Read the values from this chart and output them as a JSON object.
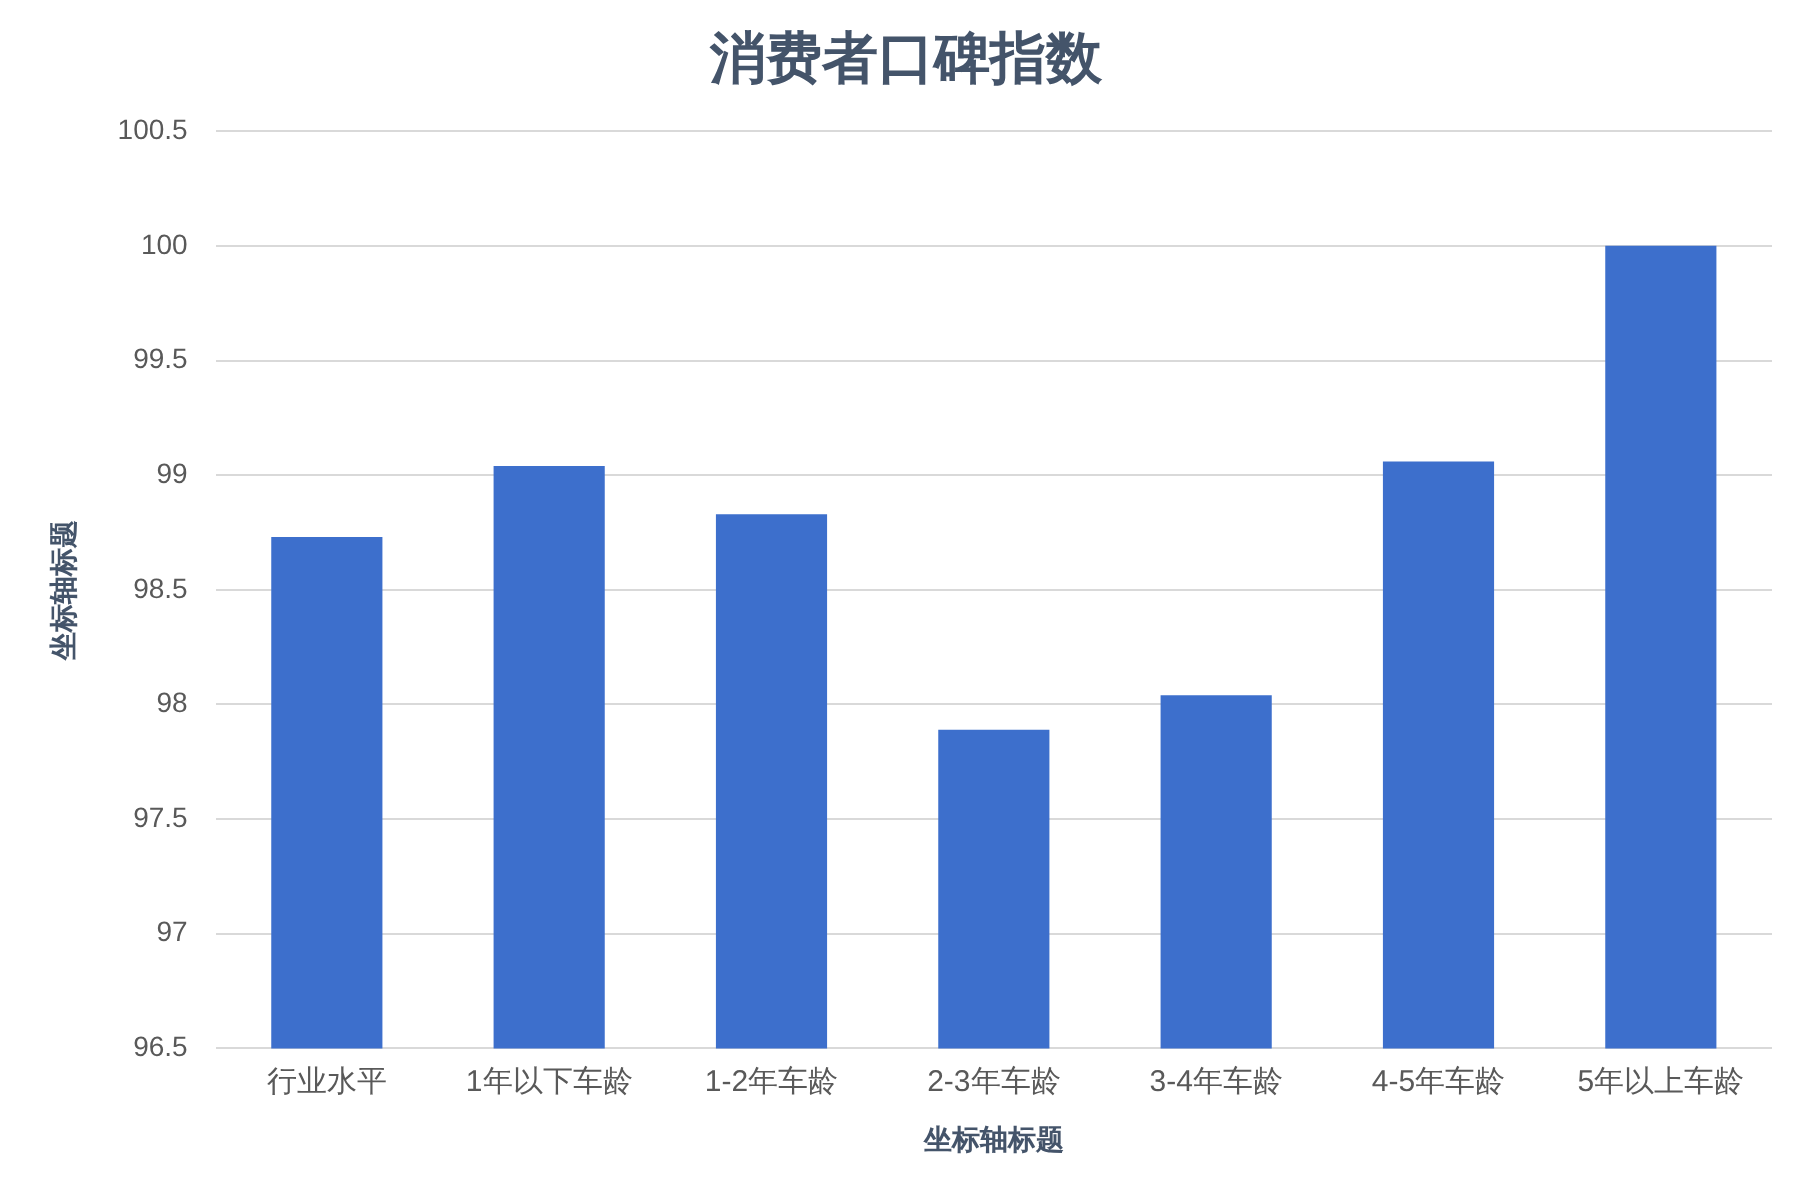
{
  "chart_data": {
    "type": "bar",
    "title": "消费者口碑指数",
    "xlabel": "坐标轴标题",
    "ylabel": "坐标轴标题",
    "categories": [
      "行业水平",
      "1年以下车龄",
      "1-2年车龄",
      "2-3年车龄",
      "3-4年车龄",
      "4-5年车龄",
      "5年以上车龄"
    ],
    "values": [
      98.73,
      99.04,
      98.83,
      97.89,
      98.04,
      99.06,
      100.0
    ],
    "color": "#3d6fcc",
    "ylim": [
      96.5,
      100.5
    ],
    "yticks": [
      96.5,
      97,
      97.5,
      98,
      98.5,
      99,
      99.5,
      100,
      100.5
    ],
    "grid": "y",
    "legend": false
  }
}
